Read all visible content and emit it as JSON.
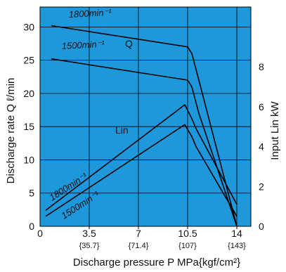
{
  "chart_data": {
    "type": "line",
    "xlabel": "Discharge pressure P  MPa{kgf/cm²}",
    "ylabel_left": "Discharge rate Q ℓ/min",
    "ylabel_right": "Input  Lin kW",
    "xlim": [
      0,
      15
    ],
    "ylim_left": [
      0,
      33
    ],
    "ylim_right": [
      0,
      11
    ],
    "x_ticks": [
      "0",
      "3.5",
      "7",
      "10.5",
      "14"
    ],
    "x_tick_values": [
      0,
      3.5,
      7,
      10.5,
      14
    ],
    "x_subticks": [
      "{35.7}",
      "{71.4}",
      "{107}",
      "{143}"
    ],
    "x_subtick_values": [
      3.5,
      7,
      10.5,
      14
    ],
    "y_left_ticks": [
      "0",
      "5",
      "10",
      "15",
      "20",
      "25",
      "30"
    ],
    "y_left_tick_values": [
      0,
      5,
      10,
      15,
      20,
      25,
      30
    ],
    "y_right_ticks": [
      "0",
      "2",
      "4",
      "6",
      "8"
    ],
    "y_right_tick_values": [
      0,
      2,
      4,
      6,
      8
    ],
    "grid": true,
    "plot_background": "#1f97db",
    "series": [
      {
        "name": "1800min⁻¹",
        "group": "Q",
        "axis": "left",
        "x": [
          0.8,
          10.5,
          10.8,
          11.3,
          14.0
        ],
        "y": [
          30.2,
          27.0,
          26.0,
          22.0,
          0.0
        ]
      },
      {
        "name": "1500min⁻¹",
        "group": "Q",
        "axis": "left",
        "x": [
          0.8,
          10.5,
          10.8,
          11.3,
          14.0
        ],
        "y": [
          25.2,
          22.0,
          21.0,
          17.0,
          0.0
        ]
      },
      {
        "name": "1800min⁻¹",
        "group": "Lin",
        "axis": "right",
        "x": [
          0.4,
          10.3,
          10.8,
          11.1,
          14.0
        ],
        "y": [
          0.8,
          6.1,
          5.4,
          4.9,
          1.1
        ]
      },
      {
        "name": "1500min⁻¹",
        "group": "Lin",
        "axis": "right",
        "x": [
          0.4,
          10.3,
          10.8,
          11.1,
          14.0
        ],
        "y": [
          0.5,
          5.1,
          4.5,
          4.0,
          0.5
        ]
      }
    ],
    "labels": {
      "q": "Q",
      "lin": "Lin",
      "q_1800": "1800min⁻¹",
      "q_1500": "1500min⁻¹",
      "lin_1800": "1800min⁻¹",
      "lin_1500": "1500min⁻¹"
    }
  }
}
